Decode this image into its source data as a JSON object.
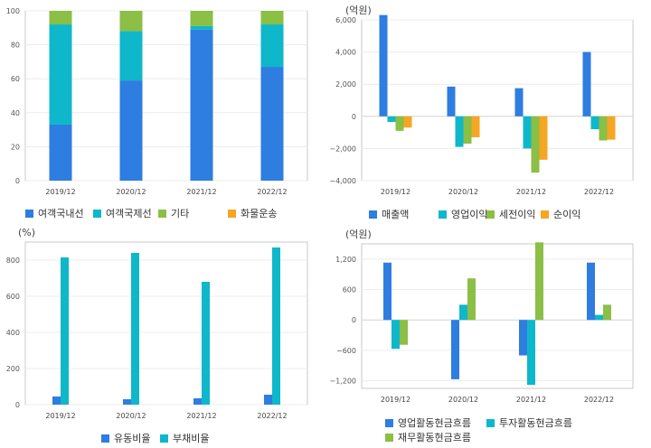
{
  "chart_data": [
    {
      "type": "bar",
      "stacked": true,
      "unit": "",
      "categories": [
        "2019/12",
        "2020/12",
        "2021/12",
        "2022/12"
      ],
      "ylim": [
        0,
        100
      ],
      "yticks": [
        "0",
        "20",
        "40",
        "60",
        "80",
        "100"
      ],
      "series": [
        {
          "name": "여객국내선",
          "color": "#2e7de1",
          "values": [
            33,
            59,
            89,
            67
          ]
        },
        {
          "name": "여객국제선",
          "color": "#0fb7cb",
          "values": [
            59,
            29,
            2,
            25
          ]
        },
        {
          "name": "기타",
          "color": "#8bbf45",
          "values": [
            8,
            12,
            9,
            8
          ]
        },
        {
          "name": "화물운송",
          "color": "#f5a623",
          "values": [
            0,
            0,
            0,
            0
          ]
        }
      ]
    },
    {
      "type": "bar",
      "unit": "(억원)",
      "categories": [
        "2019/12",
        "2020/12",
        "2021/12",
        "2022/12"
      ],
      "ylim": [
        -4000,
        6000
      ],
      "yticks": [
        "−4,000",
        "−2,000",
        "0",
        "2,000",
        "4,000",
        "6,000"
      ],
      "series": [
        {
          "name": "매출액",
          "color": "#2e7de1",
          "values": [
            6300,
            1850,
            1750,
            4000
          ]
        },
        {
          "name": "영업이익",
          "color": "#0fb7cb",
          "values": [
            -350,
            -1900,
            -2000,
            -800
          ]
        },
        {
          "name": "세전이익",
          "color": "#8bbf45",
          "values": [
            -900,
            -1700,
            -3500,
            -1500
          ]
        },
        {
          "name": "순이익",
          "color": "#f5a623",
          "values": [
            -700,
            -1300,
            -2700,
            -1450
          ]
        }
      ]
    },
    {
      "type": "bar",
      "unit": "(%)",
      "categories": [
        "2019/12",
        "2020/12",
        "2021/12",
        "2022/12"
      ],
      "ylim": [
        0,
        900
      ],
      "yticks": [
        "0",
        "200",
        "400",
        "600",
        "800"
      ],
      "series": [
        {
          "name": "유동비율",
          "color": "#2e7de1",
          "values": [
            45,
            30,
            35,
            55
          ]
        },
        {
          "name": "부채비율",
          "color": "#0fb7cb",
          "values": [
            815,
            840,
            680,
            870
          ]
        }
      ]
    },
    {
      "type": "bar",
      "unit": "(억원)",
      "categories": [
        "2019/12",
        "2020/12",
        "2021/12",
        "2022/12"
      ],
      "ylim": [
        -1350,
        1500
      ],
      "yticks": [
        "−1,200",
        "−600",
        "0",
        "600",
        "1,200"
      ],
      "series": [
        {
          "name": "영업활동현금흐름",
          "color": "#2e7de1",
          "values": [
            1130,
            -1170,
            -700,
            1130
          ]
        },
        {
          "name": "투자활동현금흐름",
          "color": "#0fb7cb",
          "values": [
            -570,
            300,
            -1280,
            100
          ]
        },
        {
          "name": "재무활동현금흐름",
          "color": "#8bbf45",
          "values": [
            -490,
            820,
            1530,
            300
          ]
        }
      ]
    }
  ]
}
